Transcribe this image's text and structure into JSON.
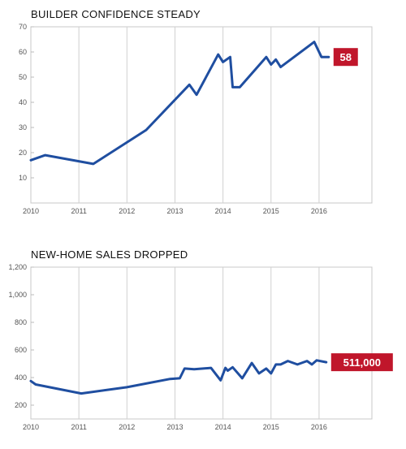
{
  "chart_data": [
    {
      "type": "line",
      "title": "BUILDER CONFIDENCE STEADY",
      "x_tick_labels": [
        "2010",
        "2011",
        "2012",
        "2013",
        "2014",
        "2015",
        "2016"
      ],
      "y_tick_labels": [
        "10",
        "20",
        "30",
        "40",
        "50",
        "60",
        "70"
      ],
      "xlim": [
        2010,
        2017.1
      ],
      "ylim": [
        0,
        70
      ],
      "grid": "vertical",
      "line_color": "#1f4ea0",
      "series": [
        {
          "x": [
            2010,
            2010.3,
            2011.3,
            2012.4,
            2013.3,
            2013.45,
            2013.9,
            2014.0,
            2014.15,
            2014.2,
            2014.35,
            2014.9,
            2015.0,
            2015.1,
            2015.2,
            2015.9,
            2016.05,
            2016.2
          ],
          "values": [
            17,
            19,
            15.5,
            29,
            47,
            43,
            59,
            56,
            58,
            46,
            46,
            58,
            55,
            57,
            54,
            64,
            58,
            58
          ]
        }
      ],
      "callout": {
        "label": "58",
        "value": 58,
        "color": "#c0162b"
      }
    },
    {
      "type": "line",
      "title": "NEW-HOME SALES DROPPED",
      "x_tick_labels": [
        "2010",
        "2011",
        "2012",
        "2013",
        "2014",
        "2015",
        "2016"
      ],
      "y_tick_labels": [
        "200",
        "400",
        "600",
        "800",
        "1,000",
        "1,200"
      ],
      "xlim": [
        2010,
        2017.1
      ],
      "ylim": [
        100,
        1200
      ],
      "grid": "vertical",
      "line_color": "#1f4ea0",
      "series": [
        {
          "x": [
            2010,
            2010.1,
            2011.05,
            2012.0,
            2012.9,
            2013.1,
            2013.2,
            2013.4,
            2013.75,
            2013.95,
            2014.05,
            2014.1,
            2014.2,
            2014.4,
            2014.6,
            2014.75,
            2014.9,
            2015.0,
            2015.1,
            2015.2,
            2015.35,
            2015.55,
            2015.75,
            2015.85,
            2015.95,
            2016.15
          ],
          "values": [
            375,
            350,
            285,
            330,
            390,
            395,
            465,
            460,
            470,
            380,
            470,
            450,
            475,
            395,
            505,
            430,
            465,
            430,
            495,
            495,
            520,
            495,
            520,
            495,
            525,
            511
          ]
        }
      ],
      "callout": {
        "label": "511,000",
        "value": 511,
        "color": "#c0162b"
      }
    }
  ]
}
